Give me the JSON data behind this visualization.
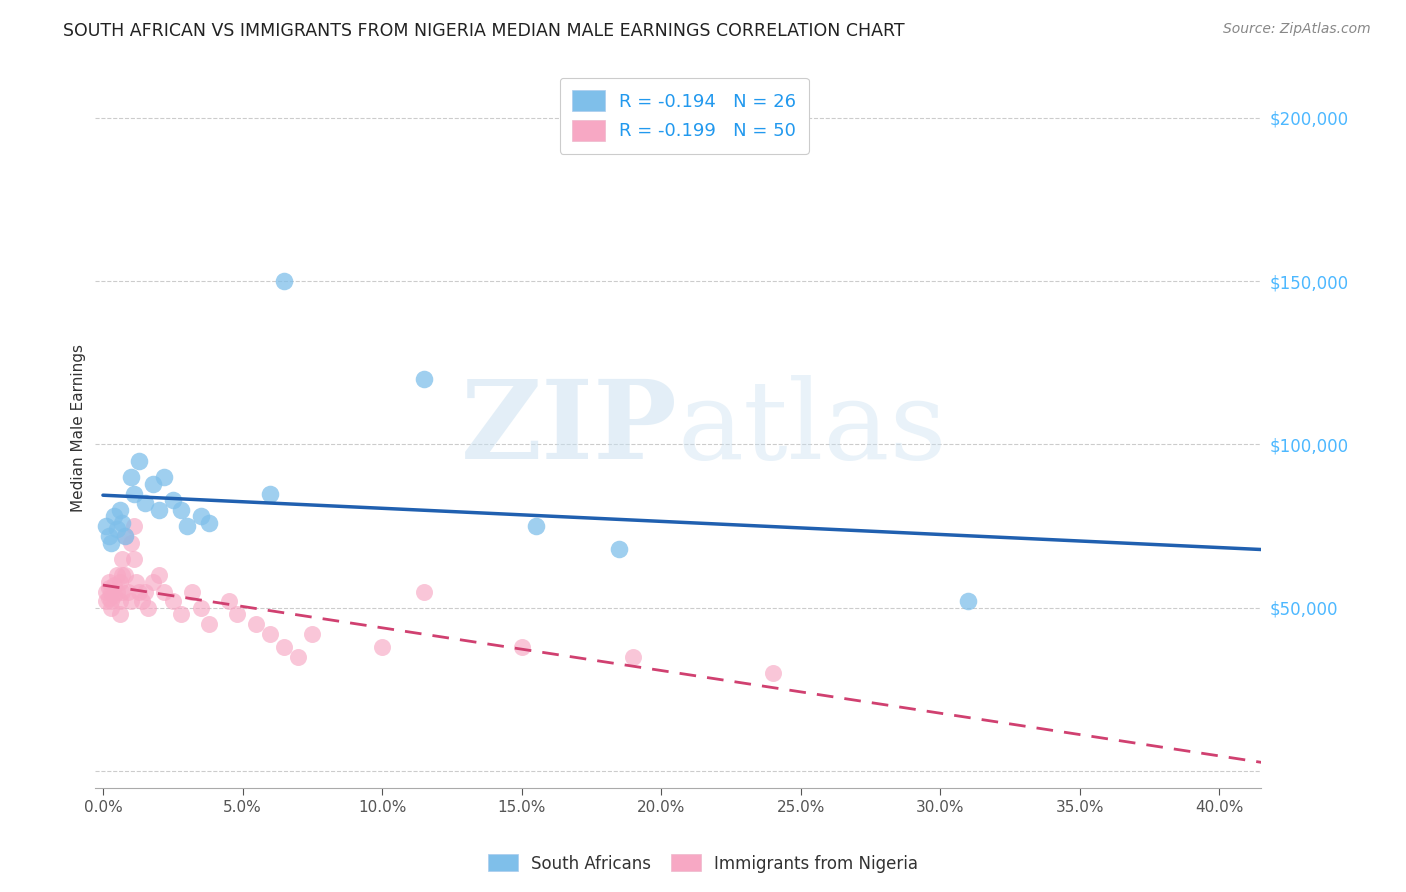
{
  "title": "SOUTH AFRICAN VS IMMIGRANTS FROM NIGERIA MEDIAN MALE EARNINGS CORRELATION CHART",
  "source": "Source: ZipAtlas.com",
  "ylabel": "Median Male Earnings",
  "xlabel_vals": [
    0.0,
    0.05,
    0.1,
    0.15,
    0.2,
    0.25,
    0.3,
    0.35,
    0.4
  ],
  "ytick_vals": [
    0,
    50000,
    100000,
    150000,
    200000
  ],
  "right_ytick_vals": [
    50000,
    100000,
    150000,
    200000
  ],
  "ylim": [
    -5000,
    215000
  ],
  "xlim": [
    -0.003,
    0.415
  ],
  "legend_entries": [
    {
      "label": "R = -0.194   N = 26",
      "color": "#7fbfea"
    },
    {
      "label": "R = -0.199   N = 50",
      "color": "#f7a8c4"
    }
  ],
  "south_africans_x": [
    0.001,
    0.002,
    0.003,
    0.004,
    0.005,
    0.006,
    0.007,
    0.008,
    0.01,
    0.011,
    0.013,
    0.015,
    0.018,
    0.02,
    0.022,
    0.025,
    0.028,
    0.03,
    0.035,
    0.038,
    0.06,
    0.065,
    0.115,
    0.155,
    0.185,
    0.31
  ],
  "south_africans_y": [
    75000,
    72000,
    70000,
    78000,
    74000,
    80000,
    76000,
    72000,
    90000,
    85000,
    95000,
    82000,
    88000,
    80000,
    90000,
    83000,
    80000,
    75000,
    78000,
    76000,
    85000,
    150000,
    120000,
    75000,
    68000,
    52000
  ],
  "nigeria_x": [
    0.001,
    0.001,
    0.002,
    0.002,
    0.002,
    0.003,
    0.003,
    0.003,
    0.004,
    0.004,
    0.005,
    0.005,
    0.006,
    0.006,
    0.006,
    0.007,
    0.007,
    0.007,
    0.008,
    0.008,
    0.009,
    0.01,
    0.01,
    0.011,
    0.011,
    0.012,
    0.013,
    0.014,
    0.015,
    0.016,
    0.018,
    0.02,
    0.022,
    0.025,
    0.028,
    0.032,
    0.035,
    0.038,
    0.045,
    0.048,
    0.055,
    0.06,
    0.065,
    0.07,
    0.075,
    0.1,
    0.115,
    0.15,
    0.19,
    0.24
  ],
  "nigeria_y": [
    55000,
    52000,
    56000,
    53000,
    58000,
    55000,
    52000,
    50000,
    54000,
    57000,
    60000,
    55000,
    58000,
    52000,
    48000,
    55000,
    60000,
    65000,
    72000,
    60000,
    55000,
    52000,
    70000,
    75000,
    65000,
    58000,
    55000,
    52000,
    55000,
    50000,
    58000,
    60000,
    55000,
    52000,
    48000,
    55000,
    50000,
    45000,
    52000,
    48000,
    45000,
    42000,
    38000,
    35000,
    42000,
    38000,
    55000,
    38000,
    35000,
    30000
  ],
  "sa_color": "#7fbfea",
  "nigeria_color": "#f7a8c4",
  "sa_line_color": "#2060b0",
  "nigeria_line_color": "#d04070",
  "watermark_zip": "ZIP",
  "watermark_atlas": "atlas",
  "background_color": "#ffffff",
  "grid_color": "#cccccc"
}
